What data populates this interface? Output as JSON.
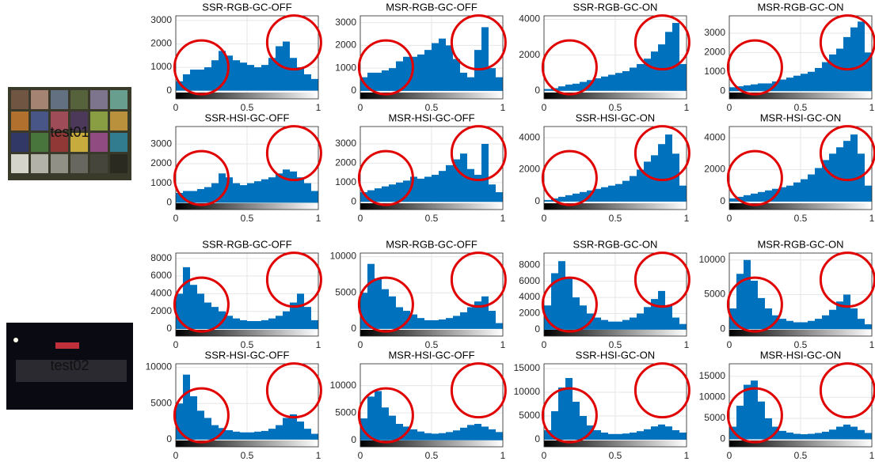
{
  "images": [
    {
      "label": "test01"
    },
    {
      "label": "test02"
    }
  ],
  "chart_data": [
    {
      "type": "histogram",
      "title": "SSR-RGB-GC-OFF",
      "color": "#0072bd",
      "grid": true,
      "bins": [
        0,
        0.05,
        0.1,
        0.15,
        0.2,
        0.25,
        0.3,
        0.35,
        0.4,
        0.45,
        0.5,
        0.55,
        0.6,
        0.65,
        0.7,
        0.75,
        0.8,
        0.85,
        0.9,
        0.95,
        1
      ],
      "values": [
        400,
        700,
        900,
        900,
        1000,
        1300,
        1700,
        1500,
        1300,
        1200,
        1100,
        1000,
        1100,
        1400,
        1900,
        2100,
        1400,
        1000,
        700,
        500
      ],
      "xlim": [
        0,
        1
      ],
      "xticks": [
        0,
        0.5,
        1
      ],
      "ylim": [
        -350,
        3200
      ],
      "yticks": [
        0,
        1000,
        2000,
        3000
      ]
    },
    {
      "type": "histogram",
      "title": "MSR-RGB-GC-OFF",
      "color": "#0072bd",
      "grid": true,
      "bins": [
        0,
        0.05,
        0.1,
        0.15,
        0.2,
        0.25,
        0.3,
        0.35,
        0.4,
        0.45,
        0.5,
        0.55,
        0.6,
        0.65,
        0.7,
        0.75,
        0.8,
        0.85,
        0.9,
        0.95,
        1
      ],
      "values": [
        600,
        800,
        800,
        900,
        1000,
        1300,
        1500,
        1500,
        1600,
        1800,
        2100,
        2300,
        2000,
        1400,
        800,
        600,
        1800,
        2800,
        1000,
        600
      ],
      "xlim": [
        0,
        1
      ],
      "xticks": [
        0,
        0.5,
        1
      ],
      "ylim": [
        -350,
        3300
      ],
      "yticks": [
        0,
        1000,
        2000,
        3000
      ]
    },
    {
      "type": "histogram",
      "title": "SSR-RGB-GC-ON",
      "color": "#0072bd",
      "grid": true,
      "bins": [
        0,
        0.05,
        0.1,
        0.15,
        0.2,
        0.25,
        0.3,
        0.35,
        0.4,
        0.45,
        0.5,
        0.55,
        0.6,
        0.65,
        0.7,
        0.75,
        0.8,
        0.85,
        0.9,
        0.95,
        1
      ],
      "values": [
        100,
        150,
        250,
        350,
        400,
        500,
        600,
        700,
        800,
        900,
        1000,
        1100,
        1300,
        1500,
        1800,
        2200,
        2600,
        3300,
        3800,
        1500
      ],
      "xlim": [
        0,
        1
      ],
      "xticks": [
        0,
        0.5,
        1
      ],
      "ylim": [
        -450,
        4200
      ],
      "yticks": [
        0,
        2000,
        4000
      ]
    },
    {
      "type": "histogram",
      "title": "MSR-RGB-GC-ON",
      "color": "#0072bd",
      "grid": true,
      "bins": [
        0,
        0.05,
        0.1,
        0.15,
        0.2,
        0.25,
        0.3,
        0.35,
        0.4,
        0.45,
        0.5,
        0.55,
        0.6,
        0.65,
        0.7,
        0.75,
        0.8,
        0.85,
        0.9,
        0.95,
        1
      ],
      "values": [
        200,
        250,
        300,
        350,
        400,
        400,
        500,
        600,
        700,
        800,
        900,
        1000,
        1200,
        1500,
        1900,
        2200,
        2800,
        3300,
        3600,
        2000
      ],
      "xlim": [
        0,
        1
      ],
      "xticks": [
        0,
        0.5,
        1
      ],
      "ylim": [
        -400,
        3900
      ],
      "yticks": [
        0,
        1000,
        2000,
        3000
      ]
    },
    {
      "type": "histogram",
      "title": "SSR-HSI-GC-OFF",
      "color": "#0072bd",
      "grid": true,
      "bins": [
        0,
        0.05,
        0.1,
        0.15,
        0.2,
        0.25,
        0.3,
        0.35,
        0.4,
        0.45,
        0.5,
        0.55,
        0.6,
        0.65,
        0.7,
        0.75,
        0.8,
        0.85,
        0.9,
        0.95,
        1
      ],
      "values": [
        500,
        600,
        600,
        700,
        800,
        1000,
        1500,
        1300,
        1000,
        900,
        1000,
        1100,
        1200,
        1300,
        1500,
        1700,
        1600,
        1300,
        1000,
        600
      ],
      "xlim": [
        0,
        1
      ],
      "xticks": [
        0,
        0.5,
        1
      ],
      "ylim": [
        -350,
        3900
      ],
      "yticks": [
        0,
        1000,
        2000,
        3000
      ]
    },
    {
      "type": "histogram",
      "title": "MSR-HSI-GC-OFF",
      "color": "#0072bd",
      "grid": true,
      "bins": [
        0,
        0.05,
        0.1,
        0.15,
        0.2,
        0.25,
        0.3,
        0.35,
        0.4,
        0.45,
        0.5,
        0.55,
        0.6,
        0.65,
        0.7,
        0.75,
        0.8,
        0.85,
        0.9,
        0.95,
        1
      ],
      "values": [
        500,
        600,
        700,
        800,
        900,
        1000,
        1100,
        1300,
        1200,
        1300,
        1400,
        1600,
        1900,
        2200,
        2500,
        1700,
        1400,
        3000,
        900,
        500
      ],
      "xlim": [
        0,
        1
      ],
      "xticks": [
        0,
        0.5,
        1
      ],
      "ylim": [
        -400,
        3900
      ],
      "yticks": [
        0,
        1000,
        2000,
        3000
      ]
    },
    {
      "type": "histogram",
      "title": "SSR-HSI-GC-ON",
      "color": "#0072bd",
      "grid": true,
      "bins": [
        0,
        0.05,
        0.1,
        0.15,
        0.2,
        0.25,
        0.3,
        0.35,
        0.4,
        0.45,
        0.5,
        0.55,
        0.6,
        0.65,
        0.7,
        0.75,
        0.8,
        0.85,
        0.9,
        0.95,
        1
      ],
      "values": [
        100,
        200,
        300,
        400,
        500,
        600,
        700,
        800,
        900,
        1000,
        1100,
        1300,
        1600,
        2000,
        2500,
        2900,
        3600,
        4200,
        3000,
        1000
      ],
      "xlim": [
        0,
        1
      ],
      "xticks": [
        0,
        0.5,
        1
      ],
      "ylim": [
        -500,
        4700
      ],
      "yticks": [
        0,
        2000,
        4000
      ]
    },
    {
      "type": "histogram",
      "title": "MSR-HSI-GC-ON",
      "color": "#0072bd",
      "grid": true,
      "bins": [
        0,
        0.05,
        0.1,
        0.15,
        0.2,
        0.25,
        0.3,
        0.35,
        0.4,
        0.45,
        0.5,
        0.55,
        0.6,
        0.65,
        0.7,
        0.75,
        0.8,
        0.85,
        0.9,
        0.95,
        1
      ],
      "values": [
        200,
        300,
        400,
        500,
        600,
        700,
        800,
        900,
        1000,
        1200,
        1400,
        1700,
        2100,
        2600,
        3000,
        3400,
        3800,
        4200,
        3000,
        1000
      ],
      "xlim": [
        0,
        1
      ],
      "xticks": [
        0,
        0.5,
        1
      ],
      "ylim": [
        -500,
        4700
      ],
      "yticks": [
        0,
        2000,
        4000
      ]
    },
    {
      "type": "histogram",
      "title": "SSR-RGB-GC-OFF",
      "color": "#0072bd",
      "grid": true,
      "bins": [
        0,
        0.05,
        0.1,
        0.15,
        0.2,
        0.25,
        0.3,
        0.35,
        0.4,
        0.45,
        0.5,
        0.55,
        0.6,
        0.65,
        0.7,
        0.75,
        0.8,
        0.85,
        0.9,
        0.95,
        1
      ],
      "values": [
        4000,
        7000,
        5000,
        4000,
        3000,
        2500,
        2000,
        1500,
        1200,
        1000,
        900,
        900,
        1000,
        1200,
        1500,
        2000,
        3000,
        4000,
        2500,
        1000
      ],
      "xlim": [
        0,
        1
      ],
      "xticks": [
        0,
        0.5,
        1
      ],
      "ylim": [
        -800,
        8600
      ],
      "yticks": [
        0,
        2000,
        4000,
        6000,
        8000
      ]
    },
    {
      "type": "histogram",
      "title": "MSR-RGB-GC-OFF",
      "color": "#0072bd",
      "grid": true,
      "bins": [
        0,
        0.05,
        0.1,
        0.15,
        0.2,
        0.25,
        0.3,
        0.35,
        0.4,
        0.45,
        0.5,
        0.55,
        0.6,
        0.65,
        0.7,
        0.75,
        0.8,
        0.85,
        0.9,
        0.95,
        1
      ],
      "values": [
        5000,
        9000,
        7000,
        5500,
        4500,
        3000,
        2500,
        2000,
        1500,
        1200,
        1200,
        1300,
        1500,
        1800,
        2300,
        3000,
        3800,
        4500,
        2500,
        800
      ],
      "xlim": [
        0,
        1
      ],
      "xticks": [
        0,
        0.5,
        1
      ],
      "ylim": [
        -1000,
        10500
      ],
      "yticks": [
        0,
        5000,
        10000
      ]
    },
    {
      "type": "histogram",
      "title": "SSR-RGB-GC-ON",
      "color": "#0072bd",
      "grid": true,
      "bins": [
        0,
        0.05,
        0.1,
        0.15,
        0.2,
        0.25,
        0.3,
        0.35,
        0.4,
        0.45,
        0.5,
        0.55,
        0.6,
        0.65,
        0.7,
        0.75,
        0.8,
        0.85,
        0.9,
        0.95,
        1
      ],
      "values": [
        3000,
        7000,
        8500,
        6500,
        4000,
        3000,
        2000,
        1500,
        1200,
        1000,
        1000,
        1200,
        1500,
        2000,
        2800,
        3800,
        4800,
        3000,
        1500,
        700
      ],
      "xlim": [
        0,
        1
      ],
      "xticks": [
        0,
        0.5,
        1
      ],
      "ylim": [
        -800,
        9500
      ],
      "yticks": [
        0,
        2000,
        4000,
        6000,
        8000
      ]
    },
    {
      "type": "histogram",
      "title": "MSR-RGB-GC-ON",
      "color": "#0072bd",
      "grid": true,
      "bins": [
        0,
        0.05,
        0.1,
        0.15,
        0.2,
        0.25,
        0.3,
        0.35,
        0.4,
        0.45,
        0.5,
        0.55,
        0.6,
        0.65,
        0.7,
        0.75,
        0.8,
        0.85,
        0.9,
        0.95,
        1
      ],
      "values": [
        3000,
        8000,
        10000,
        7000,
        4500,
        3000,
        2000,
        1500,
        1200,
        1000,
        1000,
        1200,
        1500,
        2000,
        2800,
        4000,
        5000,
        3000,
        1500,
        700
      ],
      "xlim": [
        0,
        1
      ],
      "xticks": [
        0,
        0.5,
        1
      ],
      "ylim": [
        -1000,
        11000
      ],
      "yticks": [
        0,
        5000,
        10000
      ]
    },
    {
      "type": "histogram",
      "title": "SSR-HSI-GC-OFF",
      "color": "#0072bd",
      "grid": true,
      "bins": [
        0,
        0.05,
        0.1,
        0.15,
        0.2,
        0.25,
        0.3,
        0.35,
        0.4,
        0.45,
        0.5,
        0.55,
        0.6,
        0.65,
        0.7,
        0.75,
        0.8,
        0.85,
        0.9,
        0.95,
        1
      ],
      "values": [
        5000,
        9000,
        6000,
        4000,
        3000,
        2000,
        1600,
        1300,
        1100,
        1000,
        1000,
        1100,
        1200,
        1500,
        2000,
        3000,
        3500,
        2500,
        1500,
        800
      ],
      "xlim": [
        0,
        1
      ],
      "xticks": [
        0,
        0.5,
        1
      ],
      "ylim": [
        -1000,
        10500
      ],
      "yticks": [
        0,
        5000,
        10000
      ]
    },
    {
      "type": "histogram",
      "title": "MSR-HSI-GC-OFF",
      "color": "#0072bd",
      "grid": true,
      "bins": [
        0,
        0.05,
        0.1,
        0.15,
        0.2,
        0.25,
        0.3,
        0.35,
        0.4,
        0.45,
        0.5,
        0.55,
        0.6,
        0.65,
        0.7,
        0.75,
        0.8,
        0.85,
        0.9,
        0.95,
        1
      ],
      "values": [
        4000,
        8000,
        9000,
        6000,
        4500,
        3000,
        2500,
        2000,
        1600,
        1300,
        1200,
        1300,
        1500,
        1800,
        2300,
        2800,
        3000,
        2500,
        2000,
        1500
      ],
      "xlim": [
        0,
        1
      ],
      "xticks": [
        0,
        0.5,
        1
      ],
      "ylim": [
        -1200,
        14000
      ],
      "yticks": [
        0,
        5000,
        10000
      ]
    },
    {
      "type": "histogram",
      "title": "SSR-HSI-GC-ON",
      "color": "#0072bd",
      "grid": true,
      "bins": [
        0,
        0.05,
        0.1,
        0.15,
        0.2,
        0.25,
        0.3,
        0.35,
        0.4,
        0.45,
        0.5,
        0.55,
        0.6,
        0.65,
        0.7,
        0.75,
        0.8,
        0.85,
        0.9,
        0.95,
        1
      ],
      "values": [
        2000,
        6000,
        11000,
        13000,
        8000,
        5000,
        3000,
        2000,
        1500,
        1200,
        1200,
        1300,
        1500,
        1800,
        2200,
        2800,
        3200,
        2800,
        2000,
        1500
      ],
      "xlim": [
        0,
        1
      ],
      "xticks": [
        0,
        0.5,
        1
      ],
      "ylim": [
        -1500,
        16000
      ],
      "yticks": [
        0,
        5000,
        10000,
        15000
      ]
    },
    {
      "type": "histogram",
      "title": "MSR-HSI-GC-ON",
      "color": "#0072bd",
      "grid": true,
      "bins": [
        0,
        0.05,
        0.1,
        0.15,
        0.2,
        0.25,
        0.3,
        0.35,
        0.4,
        0.45,
        0.5,
        0.55,
        0.6,
        0.65,
        0.7,
        0.75,
        0.8,
        0.85,
        0.9,
        0.95,
        1
      ],
      "values": [
        3000,
        8000,
        13000,
        14000,
        9000,
        5000,
        3000,
        2000,
        1600,
        1300,
        1200,
        1300,
        1500,
        1800,
        2300,
        3000,
        3500,
        3000,
        2200,
        1500
      ],
      "xlim": [
        0,
        1
      ],
      "xticks": [
        0,
        0.5,
        1
      ],
      "ylim": [
        -1800,
        18000
      ],
      "yticks": [
        0,
        5000,
        10000,
        15000
      ]
    }
  ]
}
